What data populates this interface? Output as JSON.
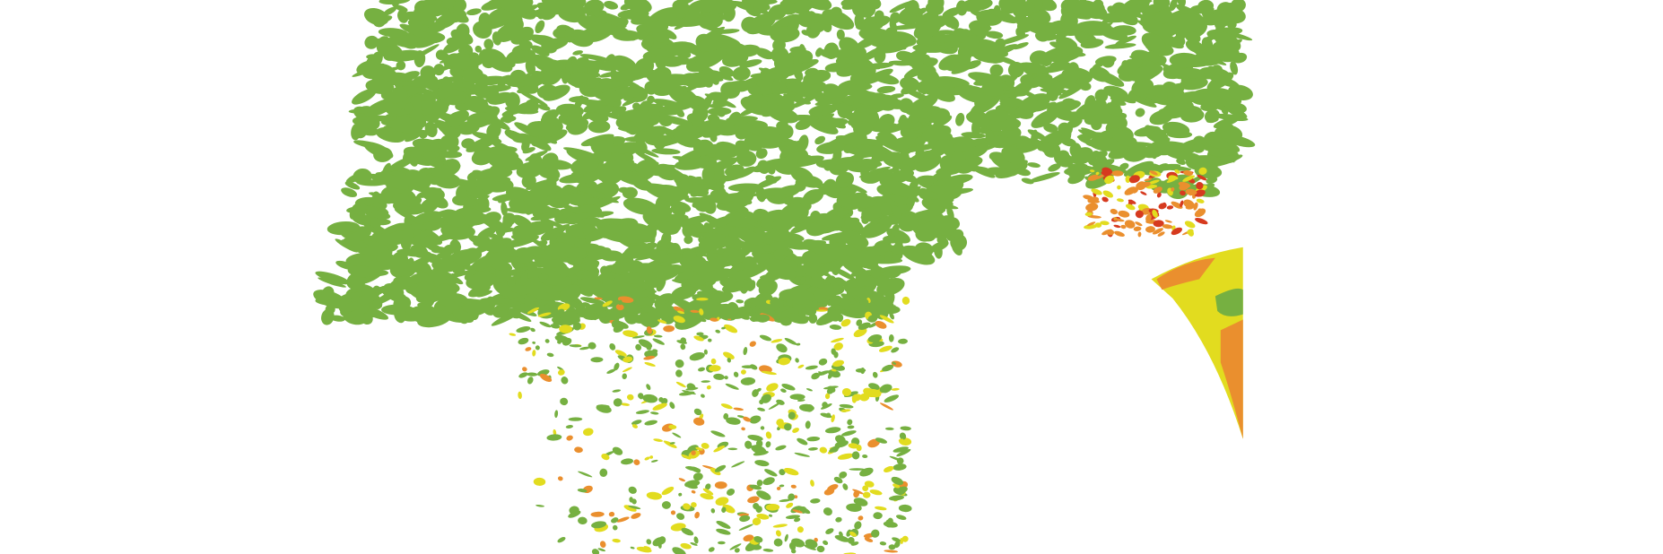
{
  "map": {
    "background": "#ffffff",
    "palette": {
      "green": "#76b041",
      "yellow": "#e2dc1f",
      "orange": "#ea8f2e",
      "red": "#d63a1f"
    }
  }
}
